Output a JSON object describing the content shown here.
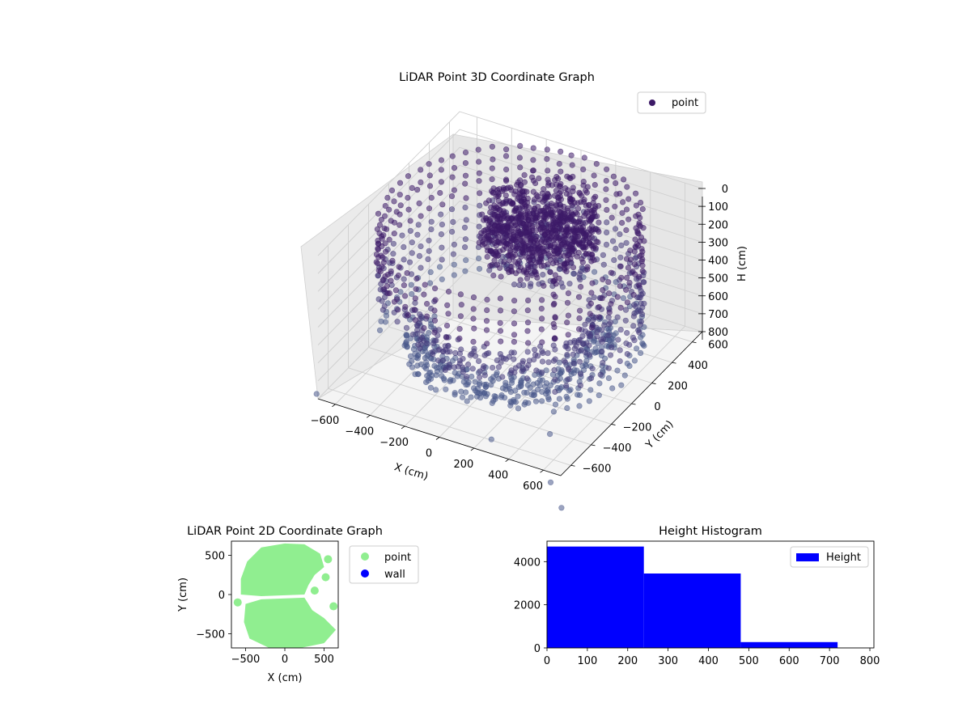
{
  "chart_data": [
    {
      "type": "scatter",
      "projection": "3d",
      "title": "LiDAR Point 3D Coordinate Graph",
      "xlabel": "X (cm)",
      "ylabel": "Y (cm)",
      "zlabel": "H (cm)",
      "xlim": [
        -700,
        700
      ],
      "ylim": [
        -700,
        700
      ],
      "zlim": [
        0,
        800
      ],
      "z_inverted": true,
      "xticks": [
        "−600",
        "−400",
        "−200",
        "0",
        "200",
        "400",
        "600"
      ],
      "yticks": [
        "−600",
        "−400",
        "−200",
        "0",
        "200",
        "400",
        "600"
      ],
      "zticks": [
        "0",
        "100",
        "200",
        "300",
        "400",
        "500",
        "600",
        "700",
        "800"
      ],
      "legend": [
        "point"
      ],
      "legend_position": "top-right",
      "colormap": "viridis-dark",
      "marker_color": "#3b2f6e",
      "grid": true,
      "series": [
        {
          "name": "point",
          "points_approx": "Approximately 8,400 LiDAR returns forming a partial cylindrical shell (radius ≈ 650 cm) around a dense central cluster near the origin, heights ranging from 0 to ~720 cm"
        }
      ]
    },
    {
      "type": "scatter",
      "title": "LiDAR Point 2D Coordinate Graph",
      "xlabel": "X (cm)",
      "ylabel": "Y (cm)",
      "xlim": [
        -680,
        680
      ],
      "ylim": [
        -680,
        680
      ],
      "xticks": [
        "−500",
        "0",
        "500"
      ],
      "yticks": [
        "−500",
        "0",
        "500"
      ],
      "legend_position": "outside-right",
      "series": [
        {
          "name": "point",
          "color": "#90ee90"
        },
        {
          "name": "wall",
          "color": "#0000ff"
        }
      ]
    },
    {
      "type": "bar",
      "title": "Height Histogram",
      "xlim": [
        0,
        810
      ],
      "ylim": [
        0,
        4950
      ],
      "xticks": [
        "0",
        "100",
        "200",
        "300",
        "400",
        "500",
        "600",
        "700",
        "800"
      ],
      "yticks": [
        "0",
        "2000",
        "4000"
      ],
      "legend": [
        "Height"
      ],
      "legend_position": "top-right",
      "bins": [
        {
          "from": 0,
          "to": 240,
          "count": 4700
        },
        {
          "from": 240,
          "to": 480,
          "count": 3450
        },
        {
          "from": 480,
          "to": 720,
          "count": 270
        }
      ],
      "color": "#0000ff"
    }
  ]
}
